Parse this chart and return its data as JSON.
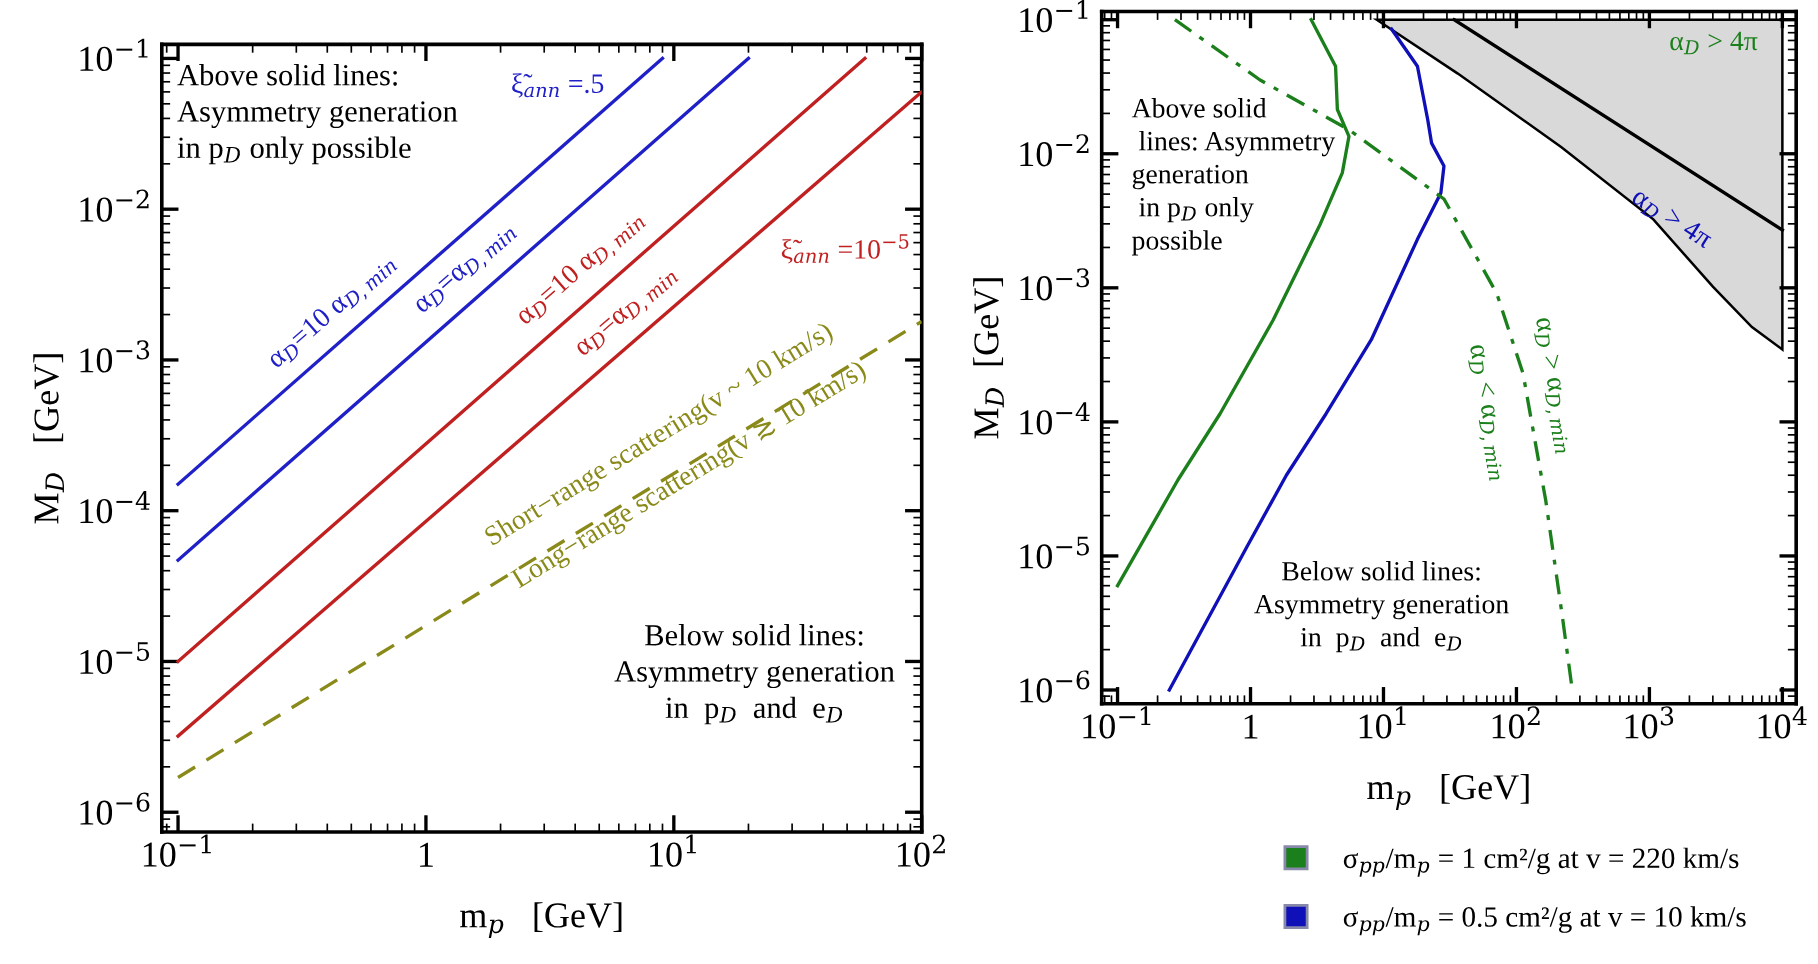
{
  "chart_data": [
    {
      "type": "line",
      "xlabel": "m$_{p}$   [GeV]",
      "ylabel": "M$_{D}$   [GeV]",
      "log": "xy",
      "grid": false,
      "legend": false,
      "xlim": [
        0.086,
        100
      ],
      "ylim": [
        7.4e-07,
        0.124
      ],
      "xticks": [
        {
          "value": 0.1,
          "label": "10$^{−1}$"
        },
        1,
        {
          "value": 10,
          "label": "10$^{1}$"
        },
        {
          "value": 100,
          "label": "10$^{2}$"
        }
      ],
      "yticks": [
        {
          "value": 1e-06,
          "label": "10$^{−6}$"
        },
        {
          "value": 1e-05,
          "label": "10$^{−5}$"
        },
        {
          "value": 0.0001,
          "label": "10$^{−4}$"
        },
        {
          "value": 0.001,
          "label": "10$^{−3}$"
        },
        {
          "value": 0.01,
          "label": "10$^{−2}$"
        },
        {
          "value": 0.1,
          "label": "10$^{−1}$"
        }
      ],
      "series": [
        {
          "color": "#2020c8",
          "x": [
            0.1,
            9
          ],
          "values": [
            0.00015,
            0.1
          ]
        },
        {
          "color": "#2020c8",
          "x": [
            0.1,
            20
          ],
          "values": [
            4.7e-05,
            0.1
          ]
        },
        {
          "color": "#c02020",
          "x": [
            0.1,
            59
          ],
          "values": [
            1e-05,
            0.1
          ]
        },
        {
          "color": "#c02020",
          "x": [
            0.1,
            100
          ],
          "values": [
            3.2e-06,
            0.06
          ]
        },
        {
          "color": "#8a8a1a",
          "x": [
            0.1,
            100
          ],
          "values": [
            1.7e-06,
            0.0018
          ],
          "line_style": "dashed"
        }
      ],
      "annotations": [
        "Above solid lines:\nAsymmetry generation\nin p$_{D}$ only possible",
        "Below solid lines:\nAsymmetry generation\nin  p$_{D}$  and  e$_{D}$",
        "ξ̃$_{ann}$ =.5",
        "α$_{D}$=10 α$_{D,min}$",
        "α$_{D}$=α$_{D,min}$",
        "α$_{D}$=10 α$_{D,min}$",
        "α$_{D}$=α$_{D,min}$",
        "ξ̃$_{ann}$ =10$^{−5}$",
        "Short−range scattering(v ~ 10 km/s)",
        "Long−range scattering(v ≳ 10 km/s)"
      ]
    },
    {
      "type": "line",
      "xlabel": "m$_{p}$   [GeV]",
      "ylabel": "M$_{D}$  [GeV]",
      "log": "xy",
      "grid": false,
      "legend": "bottom",
      "xlim": [
        0.076,
        12700
      ],
      "ylim": [
        7.9e-07,
        0.115
      ],
      "xticks": [
        {
          "value": 0.1,
          "label": "10$^{−1}$"
        },
        1,
        {
          "value": 10,
          "label": "10$^{1}$"
        },
        {
          "value": 100,
          "label": "10$^{2}$"
        },
        {
          "value": 1000,
          "label": "10$^{3}$"
        },
        {
          "value": 10000,
          "label": "10$^{4}$"
        }
      ],
      "yticks": [
        {
          "value": 1e-06,
          "label": "10$^{−6}$"
        },
        {
          "value": 1e-05,
          "label": "10$^{−5}$"
        },
        {
          "value": 0.0001,
          "label": "10$^{−4}$"
        },
        {
          "value": 0.001,
          "label": "10$^{−3}$"
        },
        {
          "value": 0.01,
          "label": "10$^{−2}$"
        },
        {
          "value": 0.1,
          "label": "10$^{−1}$"
        }
      ],
      "series": [
        {
          "type": "area",
          "color": "#d9d9d9",
          "x": [
            8.9,
            36,
            218,
            1070,
            3000,
            5900,
            10000,
            10000
          ],
          "values": [
            0.1,
            0.0398,
            0.0112,
            0.00324,
            0.00102,
            0.00051,
            0.000347,
            0.1
          ]
        },
        {
          "color": "#000000",
          "x": [
            34,
            10000
          ],
          "values": [
            0.1,
            0.0027
          ]
        },
        {
          "name": "σ$_{pp}$/m$_{p}$ = 1 cm²/g at v = 220 km/s",
          "color": "#1b7f1b",
          "x": [
            0.1,
            0.285,
            0.59,
            1.48,
            3.3,
            4.9,
            5.5,
            4.5,
            4.36,
            2.86
          ],
          "values": [
            6e-06,
            3.7e-05,
            0.000115,
            0.000575,
            0.0029,
            0.0072,
            0.0135,
            0.0214,
            0.045,
            0.1
          ]
        },
        {
          "name": "σ$_{pp}$/m$_{p}$ = 0.5 cm²/g at v = 10 km/s",
          "color": "#1010b8",
          "x": [
            0.245,
            0.94,
            1.86,
            3.7,
            8.1,
            18,
            27,
            28.5,
            23,
            21.5,
            18,
            11.5
          ],
          "values": [
            1e-06,
            1.17e-05,
            4e-05,
            0.000115,
            0.00041,
            0.0023,
            0.0051,
            0.0081,
            0.012,
            0.018,
            0.045,
            0.085
          ]
        },
        {
          "color": "#1b7f1b",
          "line_style": "dashdot",
          "x": [
            0.27,
            1.18,
            5.5,
            28.5,
            71,
            112,
            149,
            166,
            220,
            263
          ],
          "values": [
            0.1,
            0.0355,
            0.0151,
            0.0046,
            0.00091,
            0.00023,
            4.7e-05,
            2.6e-05,
            3.7e-06,
            1e-06
          ]
        }
      ],
      "annotations": [
        "Above solid\n lines: Asymmetry\ngeneration\n in p$_{D}$ only\npossible",
        "Below solid lines:\nAsymmetry generation\nin  p$_{D}$  and  e$_{D}$",
        "α$_{D}$ > 4π",
        "α$_{D}$ > 4π",
        "α$_{D}$ < α$_{D,min}$",
        "α$_{D}$ > α$_{D,min}$"
      ]
    }
  ]
}
